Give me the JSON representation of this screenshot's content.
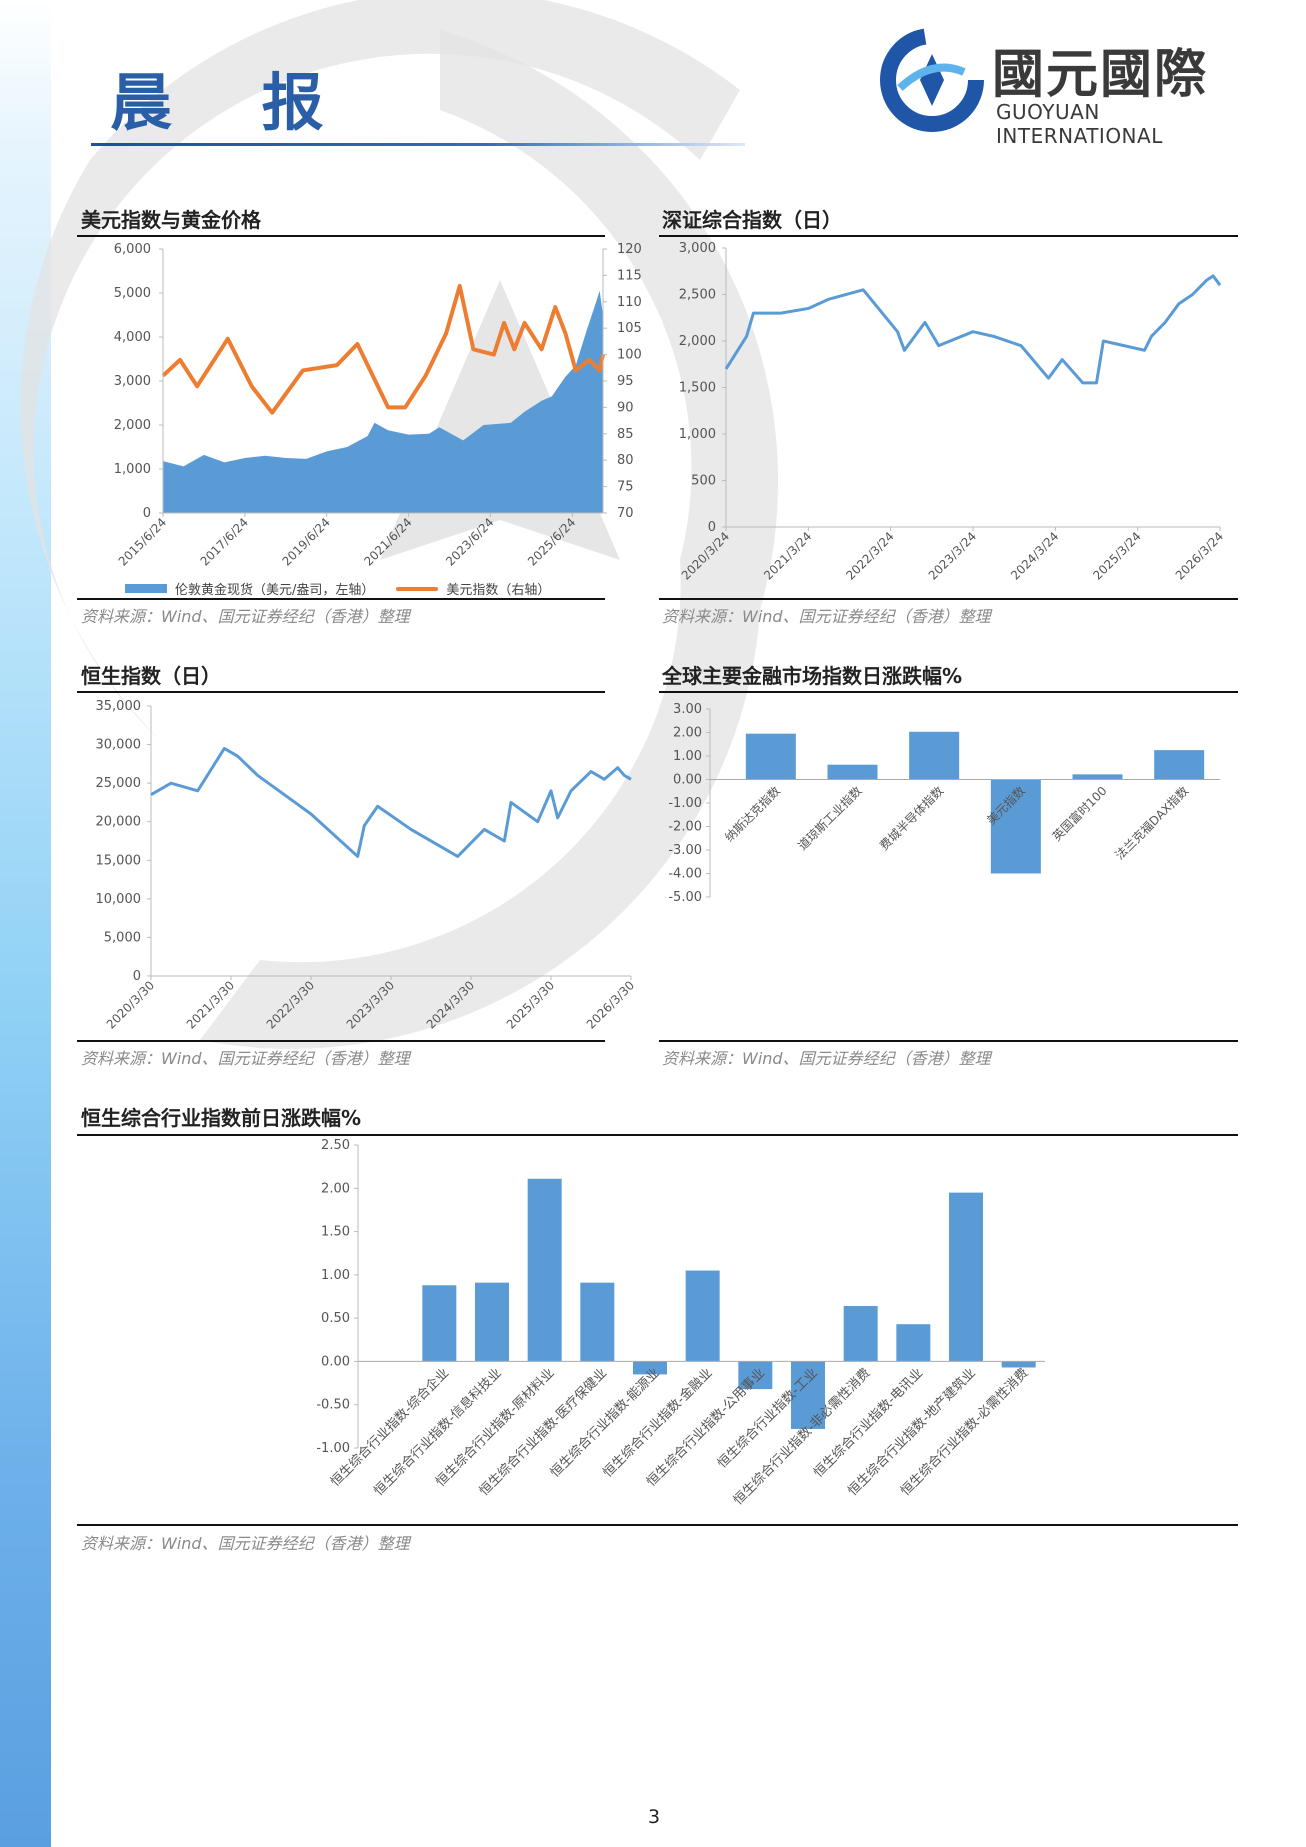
{
  "header": {
    "title": "晨 报",
    "logo_cn": "國元國際",
    "logo_en": "GUOYUAN INTERNATIONAL"
  },
  "colors": {
    "bar": "#5b9bd5",
    "line_blue": "#5b9bd5",
    "line_orange": "#ed7d31",
    "brand": "#2a5fa8"
  },
  "source_note": "资料来源：Wind、国元证券经纪（香港）整理",
  "page_number": "3",
  "chart_data": [
    {
      "id": "usd-gold",
      "type": "area+line",
      "title": "美元指数与黄金价格",
      "legend_placement": "bottom",
      "left_axis": {
        "ylim": [
          0,
          6000
        ],
        "ticks": [
          "0",
          "1,000",
          "2,000",
          "3,000",
          "4,000",
          "5,000",
          "6,000"
        ]
      },
      "right_axis": {
        "ylim": [
          70,
          120
        ],
        "ticks": [
          "70",
          "75",
          "80",
          "85",
          "90",
          "95",
          "100",
          "105",
          "110",
          "115",
          "120"
        ]
      },
      "xlim": [
        "2015-06",
        "2026-03"
      ],
      "x_ticks": [
        {
          "x": "2015-06",
          "label": "2015/6/24"
        },
        {
          "x": "2017-06",
          "label": "2017/6/24"
        },
        {
          "x": "2019-06",
          "label": "2019/6/24"
        },
        {
          "x": "2021-06",
          "label": "2021/6/24"
        },
        {
          "x": "2023-06",
          "label": "2023/6/24"
        },
        {
          "x": "2025-06",
          "label": "2025/6/24"
        }
      ],
      "series": [
        {
          "name": "伦敦黄金现货（美元/盎司，左轴）",
          "type": "area",
          "axis": "left",
          "x": [
            "2015-06",
            "2015-12",
            "2016-06",
            "2016-12",
            "2017-06",
            "2017-12",
            "2018-06",
            "2018-12",
            "2019-06",
            "2019-12",
            "2020-06",
            "2020-08",
            "2020-12",
            "2021-06",
            "2021-12",
            "2022-03",
            "2022-10",
            "2023-04",
            "2023-12",
            "2024-04",
            "2024-09",
            "2024-12",
            "2025-04",
            "2025-07",
            "2025-10",
            "2026-01",
            "2026-02",
            "2026-03"
          ],
          "values": [
            1180,
            1060,
            1320,
            1150,
            1250,
            1300,
            1250,
            1230,
            1400,
            1500,
            1750,
            2050,
            1880,
            1780,
            1800,
            1950,
            1650,
            2000,
            2050,
            2300,
            2550,
            2650,
            3100,
            3350,
            4100,
            4800,
            5050,
            4500
          ]
        },
        {
          "name": "美元指数（右轴）",
          "type": "line",
          "axis": "right",
          "x": [
            "2015-06",
            "2015-11",
            "2016-04",
            "2016-12",
            "2017-01",
            "2017-08",
            "2018-02",
            "2018-11",
            "2019-09",
            "2020-03",
            "2020-12",
            "2021-05",
            "2021-11",
            "2022-05",
            "2022-09",
            "2023-01",
            "2023-07",
            "2023-10",
            "2024-01",
            "2024-04",
            "2024-09",
            "2025-01",
            "2025-04",
            "2025-07",
            "2025-11",
            "2026-02",
            "2026-03"
          ],
          "values": [
            96,
            99,
            94,
            102,
            103,
            94,
            89,
            97,
            98,
            102,
            90,
            90,
            96,
            104,
            113,
            101,
            100,
            106,
            101,
            106,
            101,
            109,
            104,
            97,
            99,
            97,
            100
          ]
        }
      ]
    },
    {
      "id": "szse",
      "type": "line",
      "title": "深证综合指数（日）",
      "ylim": [
        0,
        3000
      ],
      "y_ticks": [
        "0",
        "500",
        "1,000",
        "1,500",
        "2,000",
        "2,500",
        "3,000"
      ],
      "xlim": [
        "2020-03",
        "2026-03"
      ],
      "x_ticks": [
        {
          "x": "2020-03",
          "label": "2020/3/24"
        },
        {
          "x": "2021-03",
          "label": "2021/3/24"
        },
        {
          "x": "2022-03",
          "label": "2022/3/24"
        },
        {
          "x": "2023-03",
          "label": "2023/3/24"
        },
        {
          "x": "2024-03",
          "label": "2024/3/24"
        },
        {
          "x": "2025-03",
          "label": "2025/3/24"
        },
        {
          "x": "2026-03",
          "label": "2026/3/24"
        }
      ],
      "series": [
        {
          "x": [
            "2020-03",
            "2020-06",
            "2020-07",
            "2020-11",
            "2021-03",
            "2021-06",
            "2021-11",
            "2022-04",
            "2022-05",
            "2022-08",
            "2022-10",
            "2023-03",
            "2023-06",
            "2023-10",
            "2024-02",
            "2024-04",
            "2024-07",
            "2024-09",
            "2024-10",
            "2025-01",
            "2025-04",
            "2025-05",
            "2025-07",
            "2025-09",
            "2025-11",
            "2026-01",
            "2026-02",
            "2026-03"
          ],
          "values": [
            1700,
            2050,
            2300,
            2300,
            2350,
            2450,
            2550,
            2100,
            1900,
            2200,
            1950,
            2100,
            2050,
            1950,
            1600,
            1800,
            1550,
            1550,
            2000,
            1950,
            1900,
            2050,
            2200,
            2400,
            2500,
            2650,
            2700,
            2600
          ]
        }
      ]
    },
    {
      "id": "hsi",
      "type": "line",
      "title": "恒生指数（日）",
      "ylim": [
        0,
        35000
      ],
      "y_ticks": [
        "0",
        "5,000",
        "10,000",
        "15,000",
        "20,000",
        "25,000",
        "30,000",
        "35,000"
      ],
      "xlim": [
        "2020-03",
        "2026-03"
      ],
      "x_ticks": [
        {
          "x": "2020-03",
          "label": "2020/3/30"
        },
        {
          "x": "2021-03",
          "label": "2021/3/30"
        },
        {
          "x": "2022-03",
          "label": "2022/3/30"
        },
        {
          "x": "2023-03",
          "label": "2023/3/30"
        },
        {
          "x": "2024-03",
          "label": "2024/3/30"
        },
        {
          "x": "2025-03",
          "label": "2025/3/30"
        },
        {
          "x": "2026-03",
          "label": "2026/3/30"
        }
      ],
      "series": [
        {
          "x": [
            "2020-03",
            "2020-06",
            "2020-10",
            "2021-02",
            "2021-04",
            "2021-07",
            "2021-11",
            "2022-03",
            "2022-10",
            "2022-11",
            "2023-01",
            "2023-06",
            "2023-10",
            "2024-01",
            "2024-05",
            "2024-08",
            "2024-09",
            "2025-01",
            "2025-03",
            "2025-04",
            "2025-06",
            "2025-09",
            "2025-11",
            "2026-01",
            "2026-02",
            "2026-03"
          ],
          "values": [
            23500,
            25000,
            24000,
            29500,
            28500,
            26000,
            23500,
            21000,
            15500,
            19500,
            22000,
            19000,
            17000,
            15500,
            19000,
            17500,
            22500,
            20000,
            24000,
            20500,
            24000,
            26500,
            25500,
            27000,
            26000,
            25500
          ]
        }
      ]
    },
    {
      "id": "global",
      "type": "bar",
      "title": "全球主要金融市场指数日涨跌幅%",
      "ylim": [
        -5,
        3
      ],
      "y_ticks": [
        "-5.00",
        "-4.00",
        "-3.00",
        "-2.00",
        "-1.00",
        "0.00",
        "1.00",
        "2.00",
        "3.00"
      ],
      "categories": [
        "纳斯达克指数",
        "道琼斯工业指数",
        "费城半导体指数",
        "美元指数",
        "英国富时100",
        "法兰克福DAX指数"
      ],
      "values": [
        1.95,
        0.63,
        2.03,
        -4.0,
        0.22,
        1.25
      ]
    },
    {
      "id": "hs-industry",
      "type": "bar",
      "title": "恒生综合行业指数前日涨跌幅%",
      "ylim": [
        -1,
        2.5
      ],
      "y_ticks": [
        "-1.00",
        "-0.50",
        "0.00",
        "0.50",
        "1.00",
        "1.50",
        "2.00",
        "2.50"
      ],
      "categories": [
        "恒生综合行业指数-综合企业",
        "恒生综合行业指数-信息科技业",
        "恒生综合行业指数-原材料业",
        "恒生综合行业指数-医疗保健业",
        "恒生综合行业指数-能源业",
        "恒生综合行业指数-金融业",
        "恒生综合行业指数-公用事业",
        "恒生综合行业指数-工业",
        "恒生综合行业指数-非必需性消费",
        "恒生综合行业指数-电讯业",
        "恒生综合行业指数-地产建筑业",
        "恒生综合行业指数-必需性消费"
      ],
      "values": [
        0.88,
        0.91,
        2.11,
        0.91,
        -0.15,
        1.05,
        -0.32,
        -0.78,
        0.64,
        0.43,
        1.95,
        -0.07
      ]
    }
  ]
}
